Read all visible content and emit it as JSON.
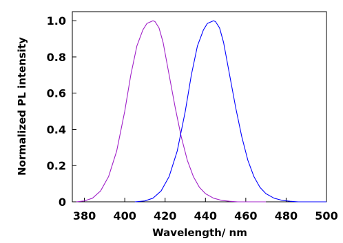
{
  "chart_data": {
    "type": "line",
    "title": "",
    "xlabel": "Wavelength/ nm",
    "ylabel": "Normalized PL intensity",
    "xlim": [
      374,
      500
    ],
    "ylim": [
      0,
      1.05
    ],
    "grid": false,
    "legend": "none",
    "x_ticks": [
      "380",
      "400",
      "420",
      "440",
      "460",
      "480",
      "500"
    ],
    "x_tick_values": [
      380,
      400,
      420,
      440,
      460,
      480,
      500
    ],
    "y_ticks": [
      "0",
      "0.2",
      "0.4",
      "0.6",
      "0.8",
      "1.0"
    ],
    "y_tick_values": [
      0,
      0.2,
      0.4,
      0.6,
      0.8,
      1.0
    ],
    "series": [
      {
        "color": "#a020c8",
        "x": [
          376,
          380,
          384,
          388,
          392,
          396,
          400,
          403,
          406,
          409,
          411,
          413,
          414,
          415,
          417,
          419,
          422,
          425,
          428,
          431,
          434,
          437,
          440,
          444,
          448,
          452,
          456,
          460,
          465,
          470
        ],
        "values": [
          0.0,
          0.005,
          0.02,
          0.06,
          0.14,
          0.28,
          0.5,
          0.7,
          0.86,
          0.95,
          0.985,
          0.995,
          1.0,
          0.995,
          0.96,
          0.88,
          0.7,
          0.52,
          0.36,
          0.23,
          0.14,
          0.08,
          0.045,
          0.02,
          0.008,
          0.003,
          0.0,
          0.0,
          0.0,
          0.0
        ]
      },
      {
        "color": "#0000ff",
        "x": [
          405,
          410,
          414,
          418,
          422,
          426,
          430,
          433,
          436,
          439,
          441,
          443,
          444,
          445,
          447,
          449,
          452,
          455,
          458,
          461,
          464,
          467,
          470,
          474,
          478,
          482,
          486,
          490,
          495,
          500
        ],
        "values": [
          0.0,
          0.005,
          0.02,
          0.06,
          0.14,
          0.28,
          0.5,
          0.7,
          0.86,
          0.95,
          0.985,
          0.995,
          1.0,
          0.995,
          0.96,
          0.88,
          0.7,
          0.52,
          0.36,
          0.23,
          0.14,
          0.08,
          0.045,
          0.02,
          0.008,
          0.003,
          0.0,
          0.0,
          0.0,
          0.0
        ]
      }
    ]
  }
}
